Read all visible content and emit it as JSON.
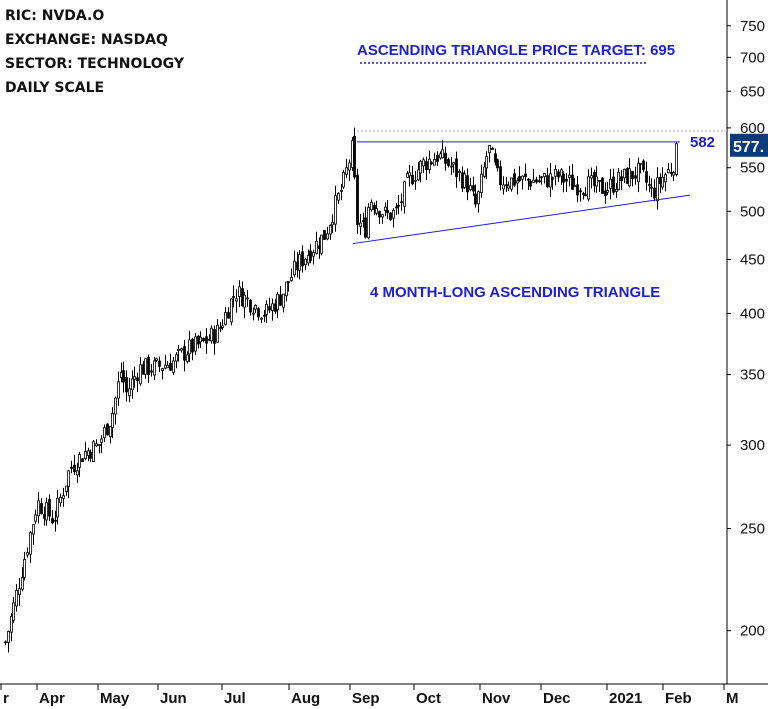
{
  "info_lines": [
    "RIC: NVDA.O",
    "EXCHANGE: NASDAQ",
    "SECTOR: TECHNOLOGY",
    "DAILY SCALE"
  ],
  "chart_data": {
    "type": "candlestick",
    "scale": "log",
    "y_ticks": [
      200,
      250,
      300,
      350,
      400,
      450,
      500,
      550,
      600,
      650,
      700,
      750
    ],
    "ylim": [
      178,
      790
    ],
    "x_labels": [
      "r",
      "Apr",
      "May",
      "Jun",
      "Jul",
      "Aug",
      "Sep",
      "Oct",
      "Nov",
      "Dec",
      "2021",
      "Feb",
      "M"
    ],
    "last_price_label": "577.",
    "resistance_value": 582,
    "resistance_label": "582",
    "target_value": 695,
    "target_label": "ASCENDING TRIANGLE PRICE TARGET: 695",
    "pattern_label": "4 MONTH-LONG ASCENDING TRIANGLE",
    "colors": {
      "candle": "#000000",
      "pattern": "#1e1ed2",
      "last_price_bg": "#0b3a78",
      "grid": "#bbbbbb"
    },
    "price_path": [
      [
        "Mar 23",
        195
      ],
      [
        "Mar 31",
        265
      ],
      [
        "Apr 09",
        255
      ],
      [
        "Apr 17",
        285
      ],
      [
        "Apr 24",
        295
      ],
      [
        "May 01",
        300
      ],
      [
        "May 08",
        320
      ],
      [
        "May 13",
        355
      ],
      [
        "May 15",
        335
      ],
      [
        "May 22",
        355
      ],
      [
        "May 29",
        355
      ],
      [
        "Jun 08",
        360
      ],
      [
        "Jun 15",
        370
      ],
      [
        "Jun 22",
        375
      ],
      [
        "Jun 29",
        385
      ],
      [
        "Jul 07",
        420
      ],
      [
        "Jul 14",
        410
      ],
      [
        "Jul 21",
        400
      ],
      [
        "Jul 28",
        415
      ],
      [
        "Aug 05",
        445
      ],
      [
        "Aug 12",
        460
      ],
      [
        "Aug 19",
        475
      ],
      [
        "Aug 24",
        505
      ],
      [
        "Aug 28",
        528
      ],
      [
        "Sep 02",
        575
      ],
      [
        "Sep 04",
        490
      ],
      [
        "Sep 08",
        480
      ],
      [
        "Sep 10",
        515
      ],
      [
        "Sep 14",
        505
      ],
      [
        "Sep 18",
        495
      ],
      [
        "Sep 23",
        500
      ],
      [
        "Sep 28",
        535
      ],
      [
        "Oct 05",
        555
      ],
      [
        "Oct 12",
        565
      ],
      [
        "Oct 19",
        550
      ],
      [
        "Oct 26",
        530
      ],
      [
        "Oct 30",
        505
      ],
      [
        "Nov 05",
        575
      ],
      [
        "Nov 10",
        535
      ],
      [
        "Nov 17",
        535
      ],
      [
        "Nov 25",
        535
      ],
      [
        "Dec 02",
        535
      ],
      [
        "Dec 09",
        540
      ],
      [
        "Dec 16",
        530
      ],
      [
        "Dec 23",
        530
      ],
      [
        "Dec 31",
        525
      ],
      [
        "Jan 07",
        535
      ],
      [
        "Jan 12",
        540
      ],
      [
        "Jan 19",
        545
      ],
      [
        "Jan 26",
        520
      ],
      [
        "Feb 01",
        540
      ],
      [
        "Feb 05",
        550
      ],
      [
        "Feb 08",
        577
      ]
    ]
  }
}
